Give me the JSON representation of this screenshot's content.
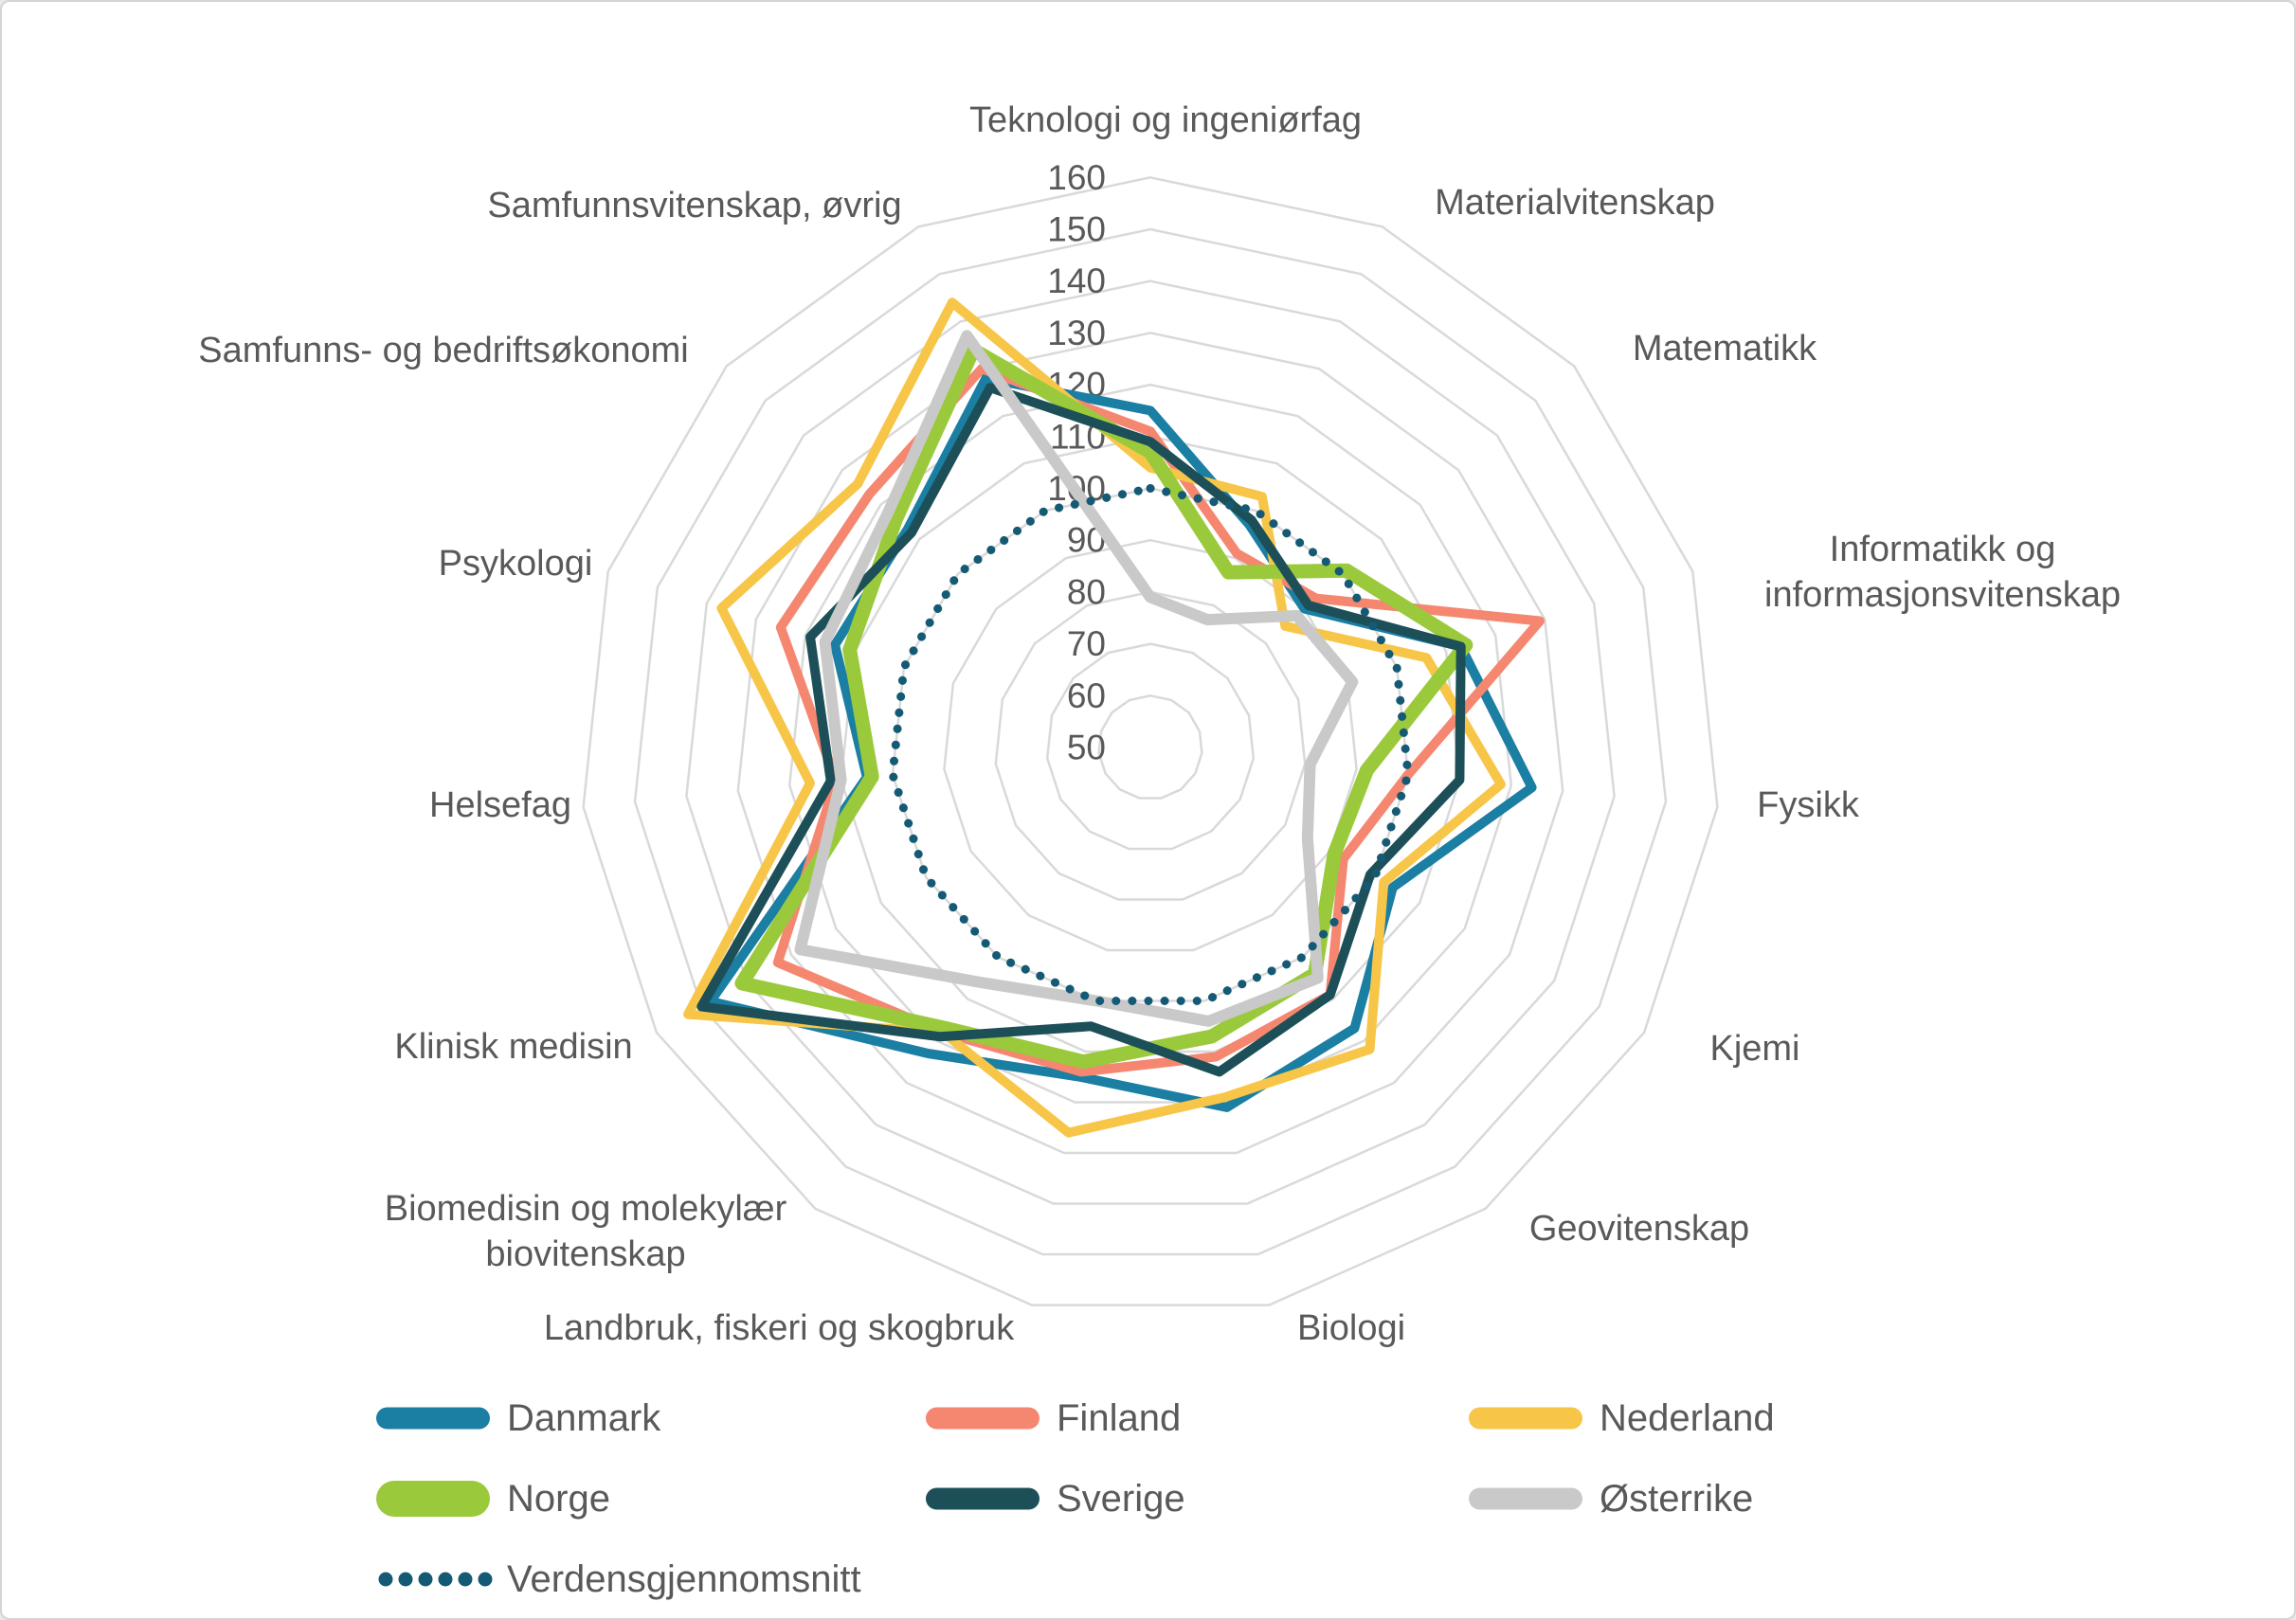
{
  "chart_data": {
    "type": "radar",
    "title": "",
    "axis": {
      "min": 50,
      "max": 160,
      "step": 10,
      "tick_labels": [
        "50",
        "60",
        "70",
        "80",
        "90",
        "100",
        "110",
        "120",
        "130",
        "140",
        "150",
        "160"
      ],
      "grid": true
    },
    "categories": [
      "Teknologi og ingeniørfag",
      "Materialvitenskap",
      "Matematikk",
      "Informatikk og informasjonsvitenskap",
      "Fysikk",
      "Kjemi",
      "Geovitenskap",
      "Biologi",
      "Landbruk, fiskeri og skogbruk",
      "Biomedisin og molekylær biovitenskap",
      "Klinisk medisin",
      "Helsefag",
      "Psykologi",
      "Samfunns- og bedriftsøkonomi",
      "Samfunnsvitenskap, øvrig"
    ],
    "category_lines": {
      "3": [
        "Informatikk og",
        "informasjonsvitenskap"
      ],
      "9": [
        "Biomedisin og molekylær",
        "biovitenskap"
      ]
    },
    "series": [
      {
        "name": "Danmark",
        "color": "#1b7ea3",
        "width": 10,
        "style": "solid",
        "values": [
          115,
          97,
          90,
          113,
          124,
          104,
          117,
          121,
          115,
          123,
          148,
          105,
          114,
          113,
          128
        ]
      },
      {
        "name": "Finland",
        "color": "#f5866f",
        "width": 10,
        "style": "solid",
        "values": [
          111,
          91,
          93,
          129,
          100,
          93,
          109,
          111,
          114,
          118,
          133,
          111,
          125,
          123,
          130
        ]
      },
      {
        "name": "Nederland",
        "color": "#f7c648",
        "width": 10,
        "style": "solid",
        "values": [
          104,
          103,
          85,
          106,
          118,
          102,
          122,
          119,
          126,
          118,
          153,
          116,
          137,
          126,
          144
        ]
      },
      {
        "name": "Norge",
        "color": "#9aca3c",
        "width": 15,
        "style": "solid",
        "values": [
          107,
          87,
          101,
          114,
          92,
          91,
          104,
          107,
          112,
          117,
          141,
          104,
          111,
          116,
          134
        ]
      },
      {
        "name": "Sverige",
        "color": "#1d4f58",
        "width": 10,
        "style": "solid",
        "values": [
          109,
          98,
          91,
          113,
          110,
          99,
          109,
          114,
          105,
          119,
          150,
          112,
          119,
          112,
          126
        ]
      },
      {
        "name": "Østerrike",
        "color": "#c9c9c9",
        "width": 12,
        "style": "solid",
        "values": [
          79,
          77,
          88,
          91,
          81,
          85,
          105,
          104,
          100,
          106,
          128,
          110,
          116,
          118,
          137
        ]
      },
      {
        "name": "Verdensgjennomsnitt",
        "color": "#155a75",
        "width": 9,
        "style": "dotted",
        "values": [
          100,
          100,
          100,
          100,
          100,
          100,
          100,
          100,
          100,
          100,
          100,
          100,
          100,
          100,
          100
        ]
      }
    ],
    "legend_position": "bottom-left",
    "colors": {
      "grid": "#d9d9d9",
      "text": "#595959",
      "background": "#ffffff"
    }
  }
}
